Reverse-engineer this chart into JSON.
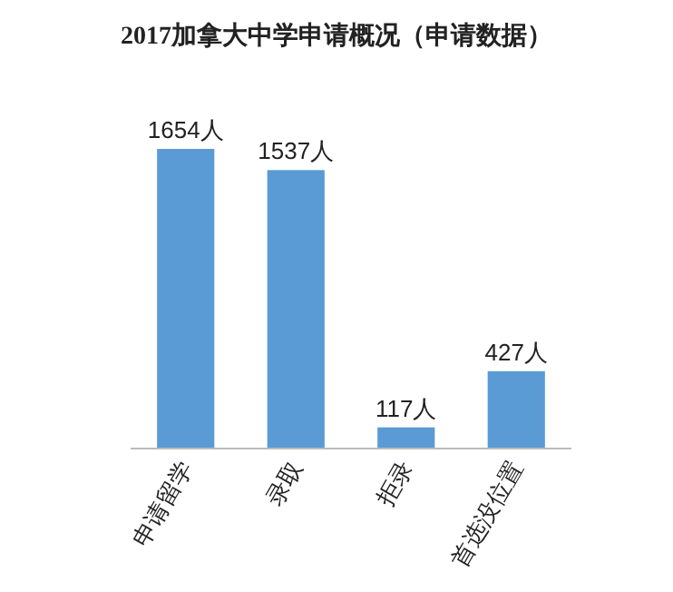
{
  "chart_data": {
    "type": "bar",
    "title": "2017加拿大中学申请概况（申请数据）",
    "categories": [
      "申请留学",
      "录取",
      "拒录",
      "首选没位置"
    ],
    "values": [
      1654,
      1537,
      117,
      427
    ],
    "value_labels": [
      "1654人",
      "1537人",
      "117人",
      "427人"
    ],
    "color": "#5b9bd5"
  }
}
